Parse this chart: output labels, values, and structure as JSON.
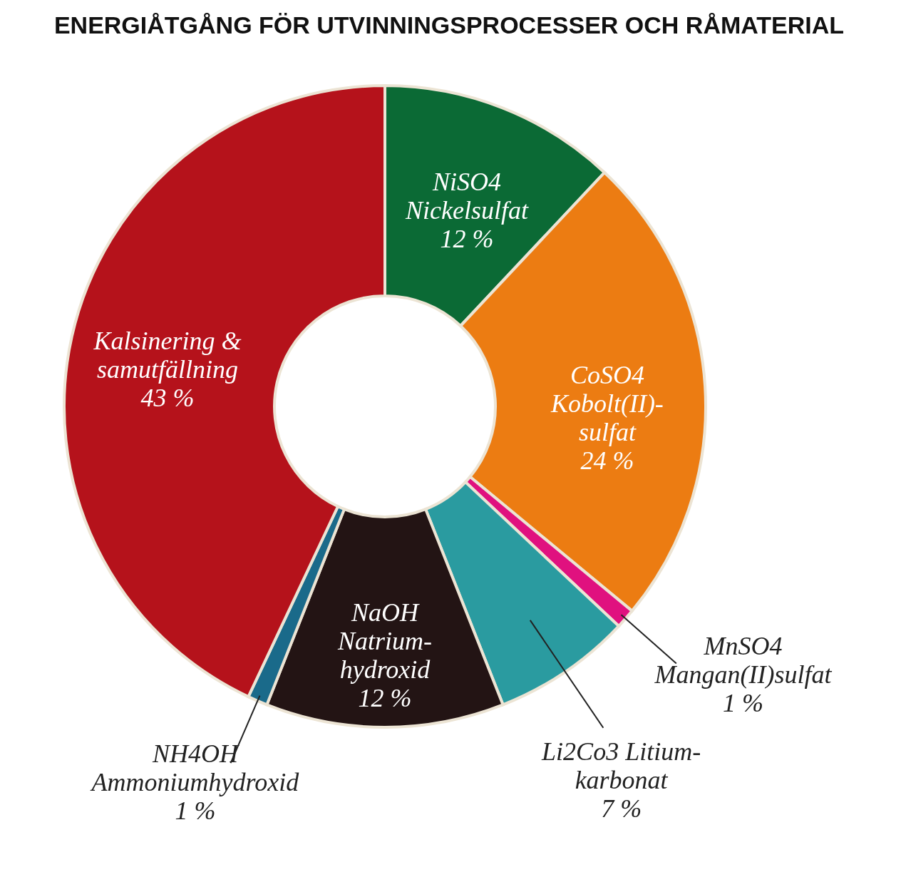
{
  "chart_data": {
    "type": "donut",
    "title": "ENERGIÅTGÅNG FÖR UTVINNINGSPROCESSER OCH RÅMATERIAL",
    "categories": [
      "NiSO4\nNickelsulfat",
      "CoSO4\nKobolt(II)-\nsulfat",
      "MnSO4\nMangan(II)sulfat",
      "Li2Co3 Litium-\nkarbonat",
      "NaOH\nNatrium-\nhydroxid",
      "NH4OH\nAmmoniumhydroxid",
      "Kalsinering &\nsamutfällning"
    ],
    "values": [
      12,
      24,
      1,
      7,
      12,
      1,
      43
    ],
    "value_labels": [
      "12 %",
      "24 %",
      "1 %",
      "7 %",
      "12 %",
      "1 %",
      "43 %"
    ],
    "colors": [
      "#0b6a35",
      "#ec7c12",
      "#e0117f",
      "#2a9ba0",
      "#231414",
      "#1a6a8a",
      "#b5121b"
    ]
  }
}
